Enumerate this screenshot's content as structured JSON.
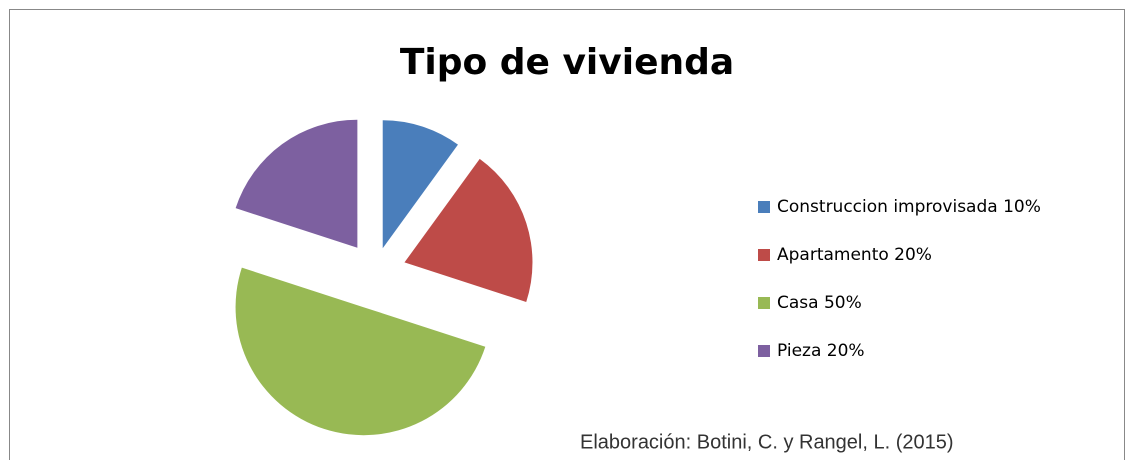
{
  "chart_data": {
    "type": "pie",
    "title": "Tipo de vivienda",
    "categories": [
      "Construccion improvisada 10%",
      "Apartamento 20%",
      "Casa 50%",
      "Pieza 20%"
    ],
    "values": [
      10,
      20,
      50,
      20
    ],
    "colors": [
      "#4a7ebb",
      "#be4b48",
      "#98b954",
      "#7d60a0"
    ],
    "legend": "right",
    "source": "Elaboración: Botini, C. y Rangel, L. (2015)"
  }
}
